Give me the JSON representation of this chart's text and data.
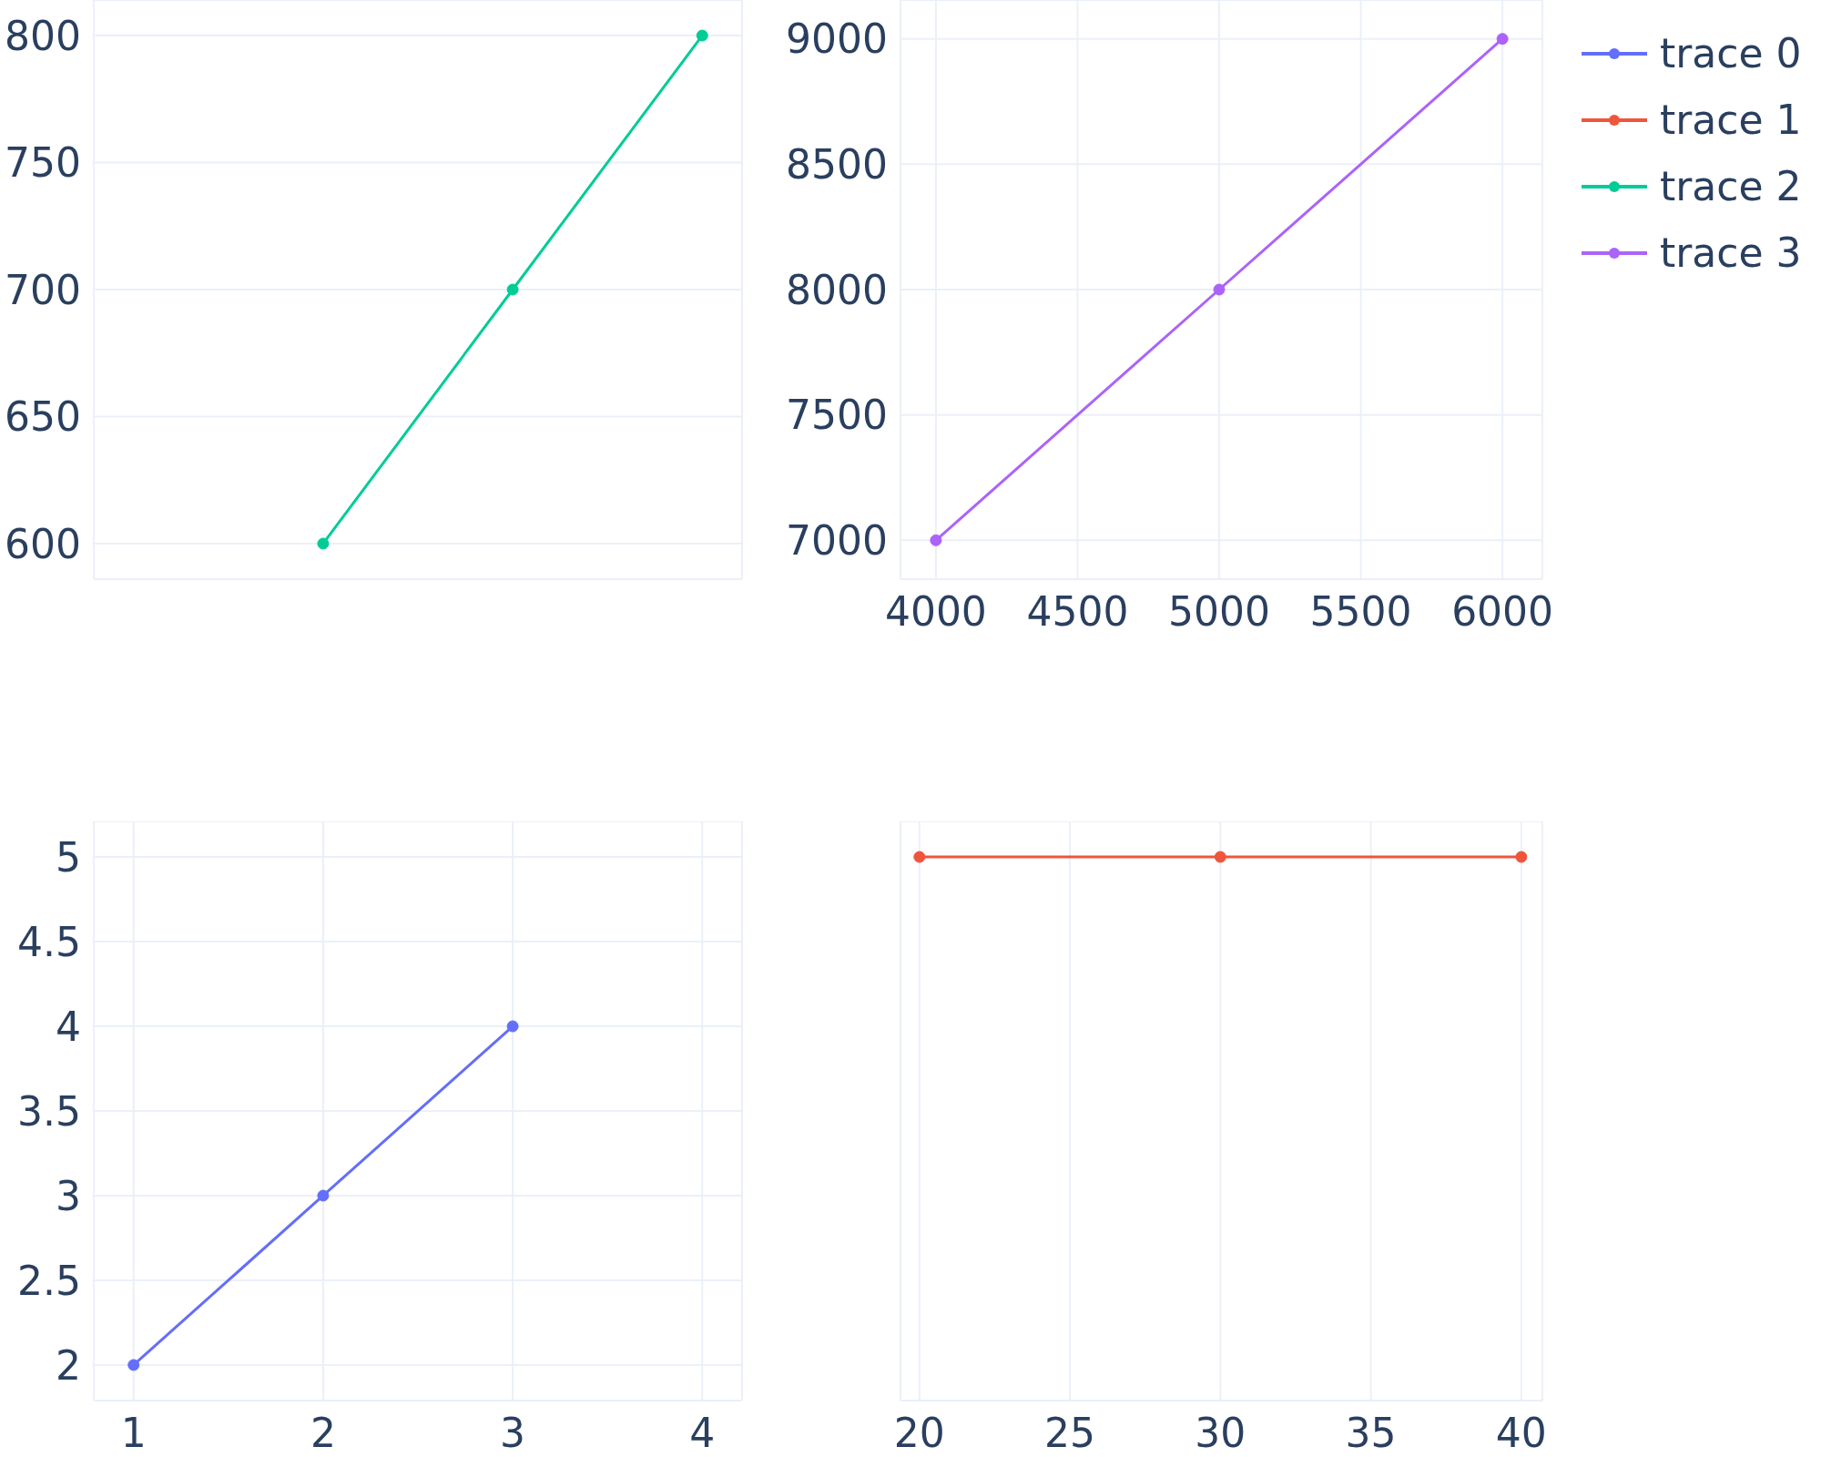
{
  "chart_data": [
    {
      "type": "line",
      "x": [
        2,
        3,
        4
      ],
      "series": [
        {
          "name": "trace 2",
          "color": "#00cc96",
          "values": [
            600,
            700,
            800
          ]
        }
      ],
      "xlim": [
        0.79,
        4.21
      ],
      "xticks": [
        1,
        2,
        3,
        4
      ],
      "ylim": [
        586,
        814
      ],
      "yticks": [
        600,
        650,
        700,
        750,
        800
      ],
      "grid": true,
      "marker": "circle",
      "tick_labels": "y",
      "legend": "top right"
    },
    {
      "type": "line",
      "x": [
        4000,
        5000,
        6000
      ],
      "series": [
        {
          "name": "trace 3",
          "color": "#ab63fa",
          "values": [
            7000,
            8000,
            9000
          ]
        }
      ],
      "xlim": [
        3875,
        6141
      ],
      "xticks": [
        4000,
        4500,
        5000,
        5500,
        6000
      ],
      "ylim": [
        6845,
        9155
      ],
      "yticks": [
        7000,
        7500,
        8000,
        8500,
        9000
      ],
      "grid": true,
      "marker": "circle",
      "legend": "top right"
    },
    {
      "type": "line",
      "x": [
        1,
        2,
        3
      ],
      "series": [
        {
          "name": "trace 0",
          "color": "#636efa",
          "values": [
            2,
            3,
            4
          ]
        }
      ],
      "xlim": [
        0.79,
        4.21
      ],
      "xticks": [
        1,
        2,
        3,
        4
      ],
      "ylim": [
        1.79,
        5.21
      ],
      "yticks": [
        2,
        2.5,
        3,
        3.5,
        4,
        4.5,
        5
      ],
      "grid": true,
      "marker": "circle",
      "legend": "top right"
    },
    {
      "type": "line",
      "x": [
        20,
        30,
        40
      ],
      "series": [
        {
          "name": "trace 1",
          "color": "#ef553b",
          "values": [
            5,
            5,
            5
          ]
        }
      ],
      "xlim": [
        19.37,
        40.7
      ],
      "xticks": [
        20,
        25,
        30,
        35,
        40
      ],
      "ylim": [
        1.79,
        5.21
      ],
      "yticks": [
        2,
        2.5,
        3,
        3.5,
        4,
        4.5,
        5
      ],
      "grid": true,
      "marker": "circle",
      "tick_labels": "x",
      "legend": "top right"
    }
  ]
}
